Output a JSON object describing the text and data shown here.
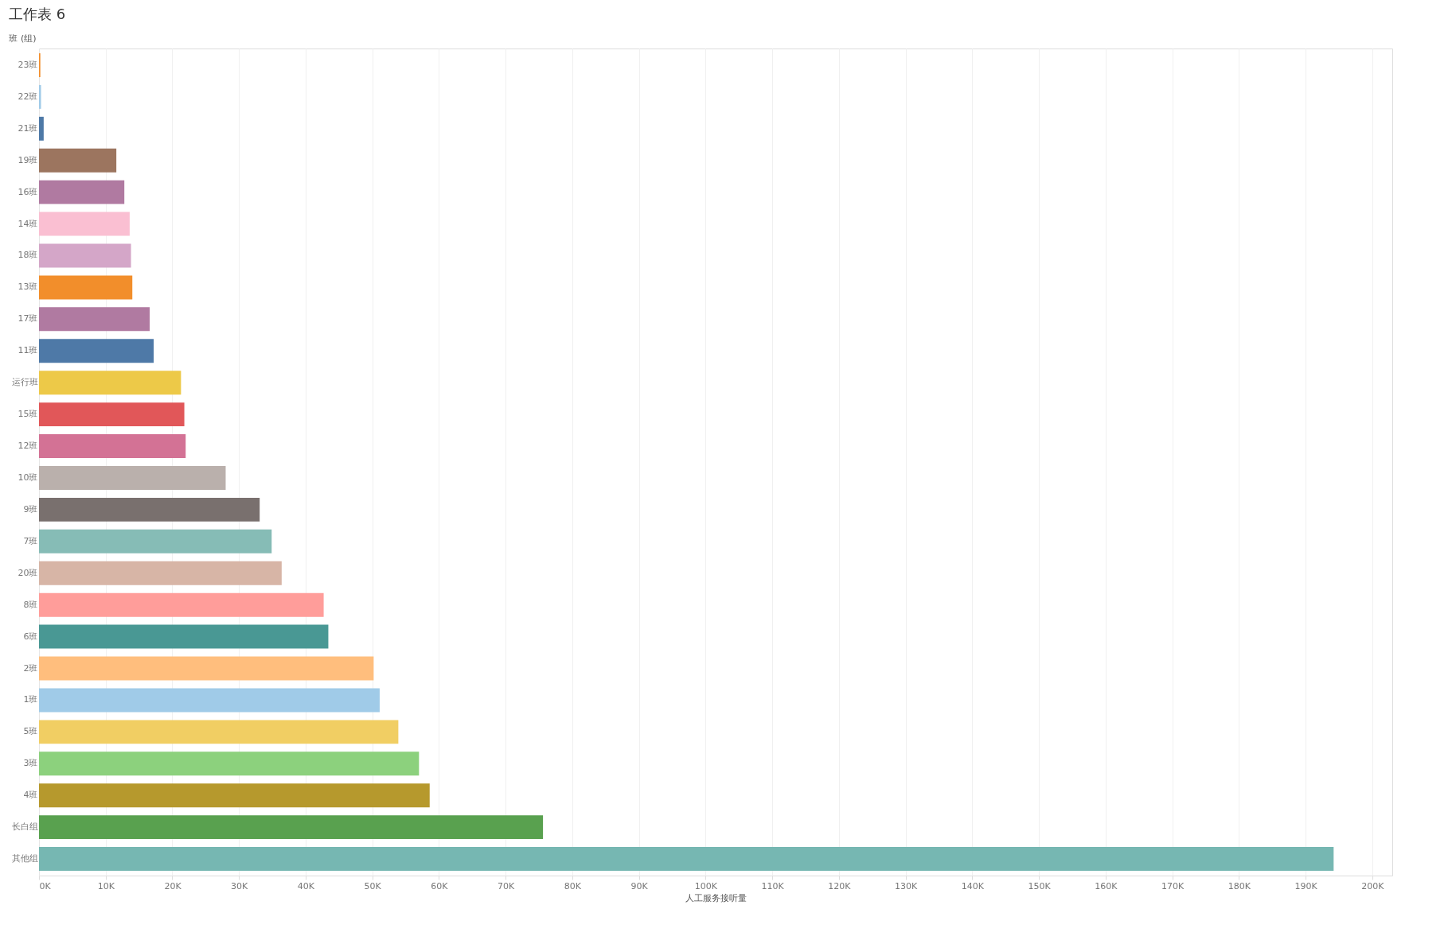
{
  "chart_data": {
    "type": "bar",
    "orientation": "horizontal",
    "title": "工作表 6",
    "xlabel": "人工服务接听量",
    "ylabel": "班 (组)",
    "categories": [
      "23班",
      "22班",
      "21班",
      "19班",
      "16班",
      "14班",
      "18班",
      "13班",
      "17班",
      "11班",
      "运行班",
      "15班",
      "12班",
      "10班",
      "9班",
      "7班",
      "20班",
      "8班",
      "6班",
      "2班",
      "1班",
      "5班",
      "3班",
      "4班",
      "长白组",
      "其他组"
    ],
    "values": [
      200,
      300,
      700,
      11600,
      12800,
      13600,
      13800,
      14000,
      16600,
      17200,
      21300,
      21800,
      22000,
      28000,
      33100,
      34900,
      36400,
      42700,
      43400,
      50200,
      51100,
      53900,
      57000,
      58600,
      75600,
      194200
    ],
    "colors": [
      "#f28e2b",
      "#a0cbe8",
      "#4e79a7",
      "#9c755f",
      "#b07aa1",
      "#fabfd2",
      "#d4a6c8",
      "#f28e2b",
      "#b07aa1",
      "#4e79a7",
      "#edc948",
      "#e15759",
      "#d37295",
      "#bab0ac",
      "#79706e",
      "#86bcb6",
      "#d7b5a6",
      "#ff9d9a",
      "#499894",
      "#ffbe7d",
      "#a0cbe8",
      "#f1ce63",
      "#8cd17d",
      "#b6992d",
      "#59a14f",
      "#76b7b2"
    ],
    "xlim": [
      0,
      203000
    ],
    "xticks": [
      {
        "value": 0,
        "label": "0K"
      },
      {
        "value": 10000,
        "label": "10K"
      },
      {
        "value": 20000,
        "label": "20K"
      },
      {
        "value": 30000,
        "label": "30K"
      },
      {
        "value": 40000,
        "label": "40K"
      },
      {
        "value": 50000,
        "label": "50K"
      },
      {
        "value": 60000,
        "label": "60K"
      },
      {
        "value": 70000,
        "label": "70K"
      },
      {
        "value": 80000,
        "label": "80K"
      },
      {
        "value": 90000,
        "label": "90K"
      },
      {
        "value": 100000,
        "label": "100K"
      },
      {
        "value": 110000,
        "label": "110K"
      },
      {
        "value": 120000,
        "label": "120K"
      },
      {
        "value": 130000,
        "label": "130K"
      },
      {
        "value": 140000,
        "label": "140K"
      },
      {
        "value": 150000,
        "label": "150K"
      },
      {
        "value": 160000,
        "label": "160K"
      },
      {
        "value": 170000,
        "label": "170K"
      },
      {
        "value": 180000,
        "label": "180K"
      },
      {
        "value": 190000,
        "label": "190K"
      },
      {
        "value": 200000,
        "label": "200K"
      }
    ],
    "grid": "x",
    "legend": false
  }
}
